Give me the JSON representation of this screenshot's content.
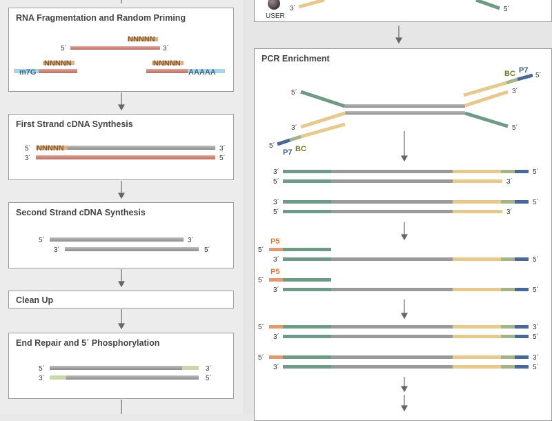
{
  "left_steps": [
    {
      "title": "RNA Fragmentation and Random Priming"
    },
    {
      "title": "First Strand cDNA Synthesis"
    },
    {
      "title": "Second Strand cDNA Synthesis"
    },
    {
      "title": "Clean Up"
    },
    {
      "title": "End Repair and 5´ Phosphorylation"
    }
  ],
  "right": {
    "pcr_title": "PCR Enrichment",
    "user_label": "USER"
  },
  "labels": {
    "five": "5´",
    "three": "3´",
    "nnnnn": "NNNNN",
    "m7g": "m7G",
    "polya": "AAAAA",
    "bc": "BC",
    "p7": "P7",
    "p5": "P5"
  },
  "colors": {
    "rna": "#c9867a",
    "cdna": "#9a9a9a",
    "adapter_green": "#6f9a86",
    "adapter_yellow": "#e6c98c",
    "barcode": "#a3b48a",
    "p7": "#4a6896",
    "p5": "#e09a72",
    "cap_blue": "#8ec4dc",
    "primer": "#c8a06a"
  }
}
